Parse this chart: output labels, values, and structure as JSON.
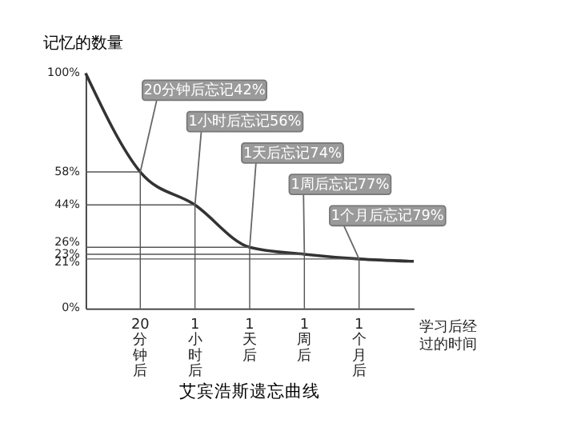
{
  "chart_data": {
    "type": "line",
    "title": "艾宾浩斯遗忘曲线",
    "xlabel": "学习后经过的时间",
    "ylabel": "记忆的数量",
    "categories": [
      null,
      "20分钟后",
      "1小时后",
      "1天后",
      "1周后",
      "1个月后",
      null
    ],
    "values": [
      100,
      58,
      44,
      26,
      23,
      21,
      20
    ],
    "color": "#333333",
    "ylim": [
      0,
      100
    ],
    "yticks": [
      {
        "value": 0,
        "label": "0%"
      },
      {
        "value": 21,
        "label": "21%"
      },
      {
        "value": 23,
        "label": "23%"
      },
      {
        "value": 26,
        "label": "26%"
      },
      {
        "value": 44,
        "label": "44%"
      },
      {
        "value": 58,
        "label": "58%"
      },
      {
        "value": 100,
        "label": "100%"
      }
    ],
    "ref_lines": [
      {
        "axis": "x",
        "value": "20分钟后"
      },
      {
        "axis": "x",
        "value": "1小时后"
      },
      {
        "axis": "x",
        "value": "1天后"
      },
      {
        "axis": "x",
        "value": "1周后"
      },
      {
        "axis": "x",
        "value": "1个月后"
      },
      {
        "axis": "y",
        "value": 58
      },
      {
        "axis": "y",
        "value": 44
      },
      {
        "axis": "y",
        "value": 26
      },
      {
        "axis": "y",
        "value": 23
      },
      {
        "axis": "y",
        "value": 21
      }
    ],
    "annotations": [
      {
        "text": "20分钟后忘记42%",
        "x": "20分钟后",
        "y": 58
      },
      {
        "text": "1小时后忘记56%",
        "x": "1小时后",
        "y": 44
      },
      {
        "text": "1天后忘记74%",
        "x": "1天后",
        "y": 26
      },
      {
        "text": "1周后忘记77%",
        "x": "1周后",
        "y": 23
      },
      {
        "text": "1个月后忘记79%",
        "x": "1个月后",
        "y": 21
      }
    ]
  }
}
